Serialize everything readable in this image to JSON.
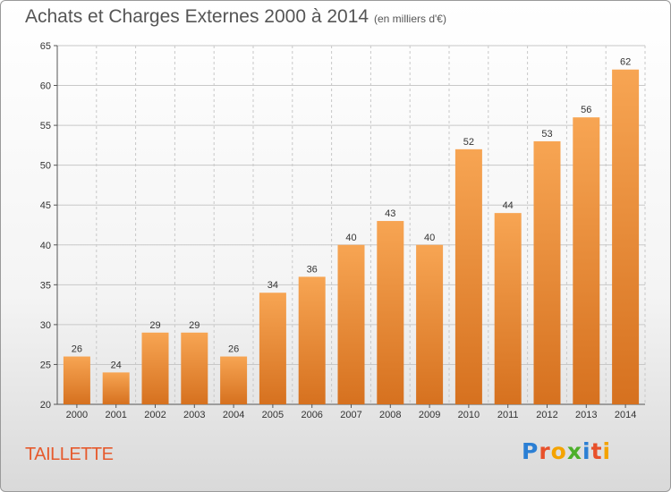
{
  "header": {
    "title": "Achats et Charges Externes 2000 à 2014",
    "subtitle": "(en milliers d'€)"
  },
  "footer": {
    "commune": "TAILLETTE",
    "logo_text": "Proxiti",
    "logo_colors": [
      "#2b7fd4",
      "#e8502a",
      "#f4a300",
      "#4caf2a",
      "#2b7fd4",
      "#e8502a",
      "#f4a300"
    ]
  },
  "chart_data": {
    "type": "bar",
    "title": "Achats et Charges Externes 2000 à 2014",
    "subtitle": "(en milliers d'€)",
    "xlabel": "",
    "ylabel": "",
    "categories": [
      "2000",
      "2001",
      "2002",
      "2003",
      "2004",
      "2005",
      "2006",
      "2007",
      "2008",
      "2009",
      "2010",
      "2011",
      "2012",
      "2013",
      "2014"
    ],
    "values": [
      26,
      24,
      29,
      29,
      26,
      34,
      36,
      40,
      43,
      40,
      52,
      44,
      53,
      56,
      62
    ],
    "ylim": [
      20,
      65
    ],
    "yticks": [
      20,
      25,
      30,
      35,
      40,
      45,
      50,
      55,
      60,
      65
    ],
    "grid": true,
    "bar_color_top": "#f7a553",
    "bar_color_bottom": "#d6711f",
    "grid_color": "#c8c8c8"
  }
}
